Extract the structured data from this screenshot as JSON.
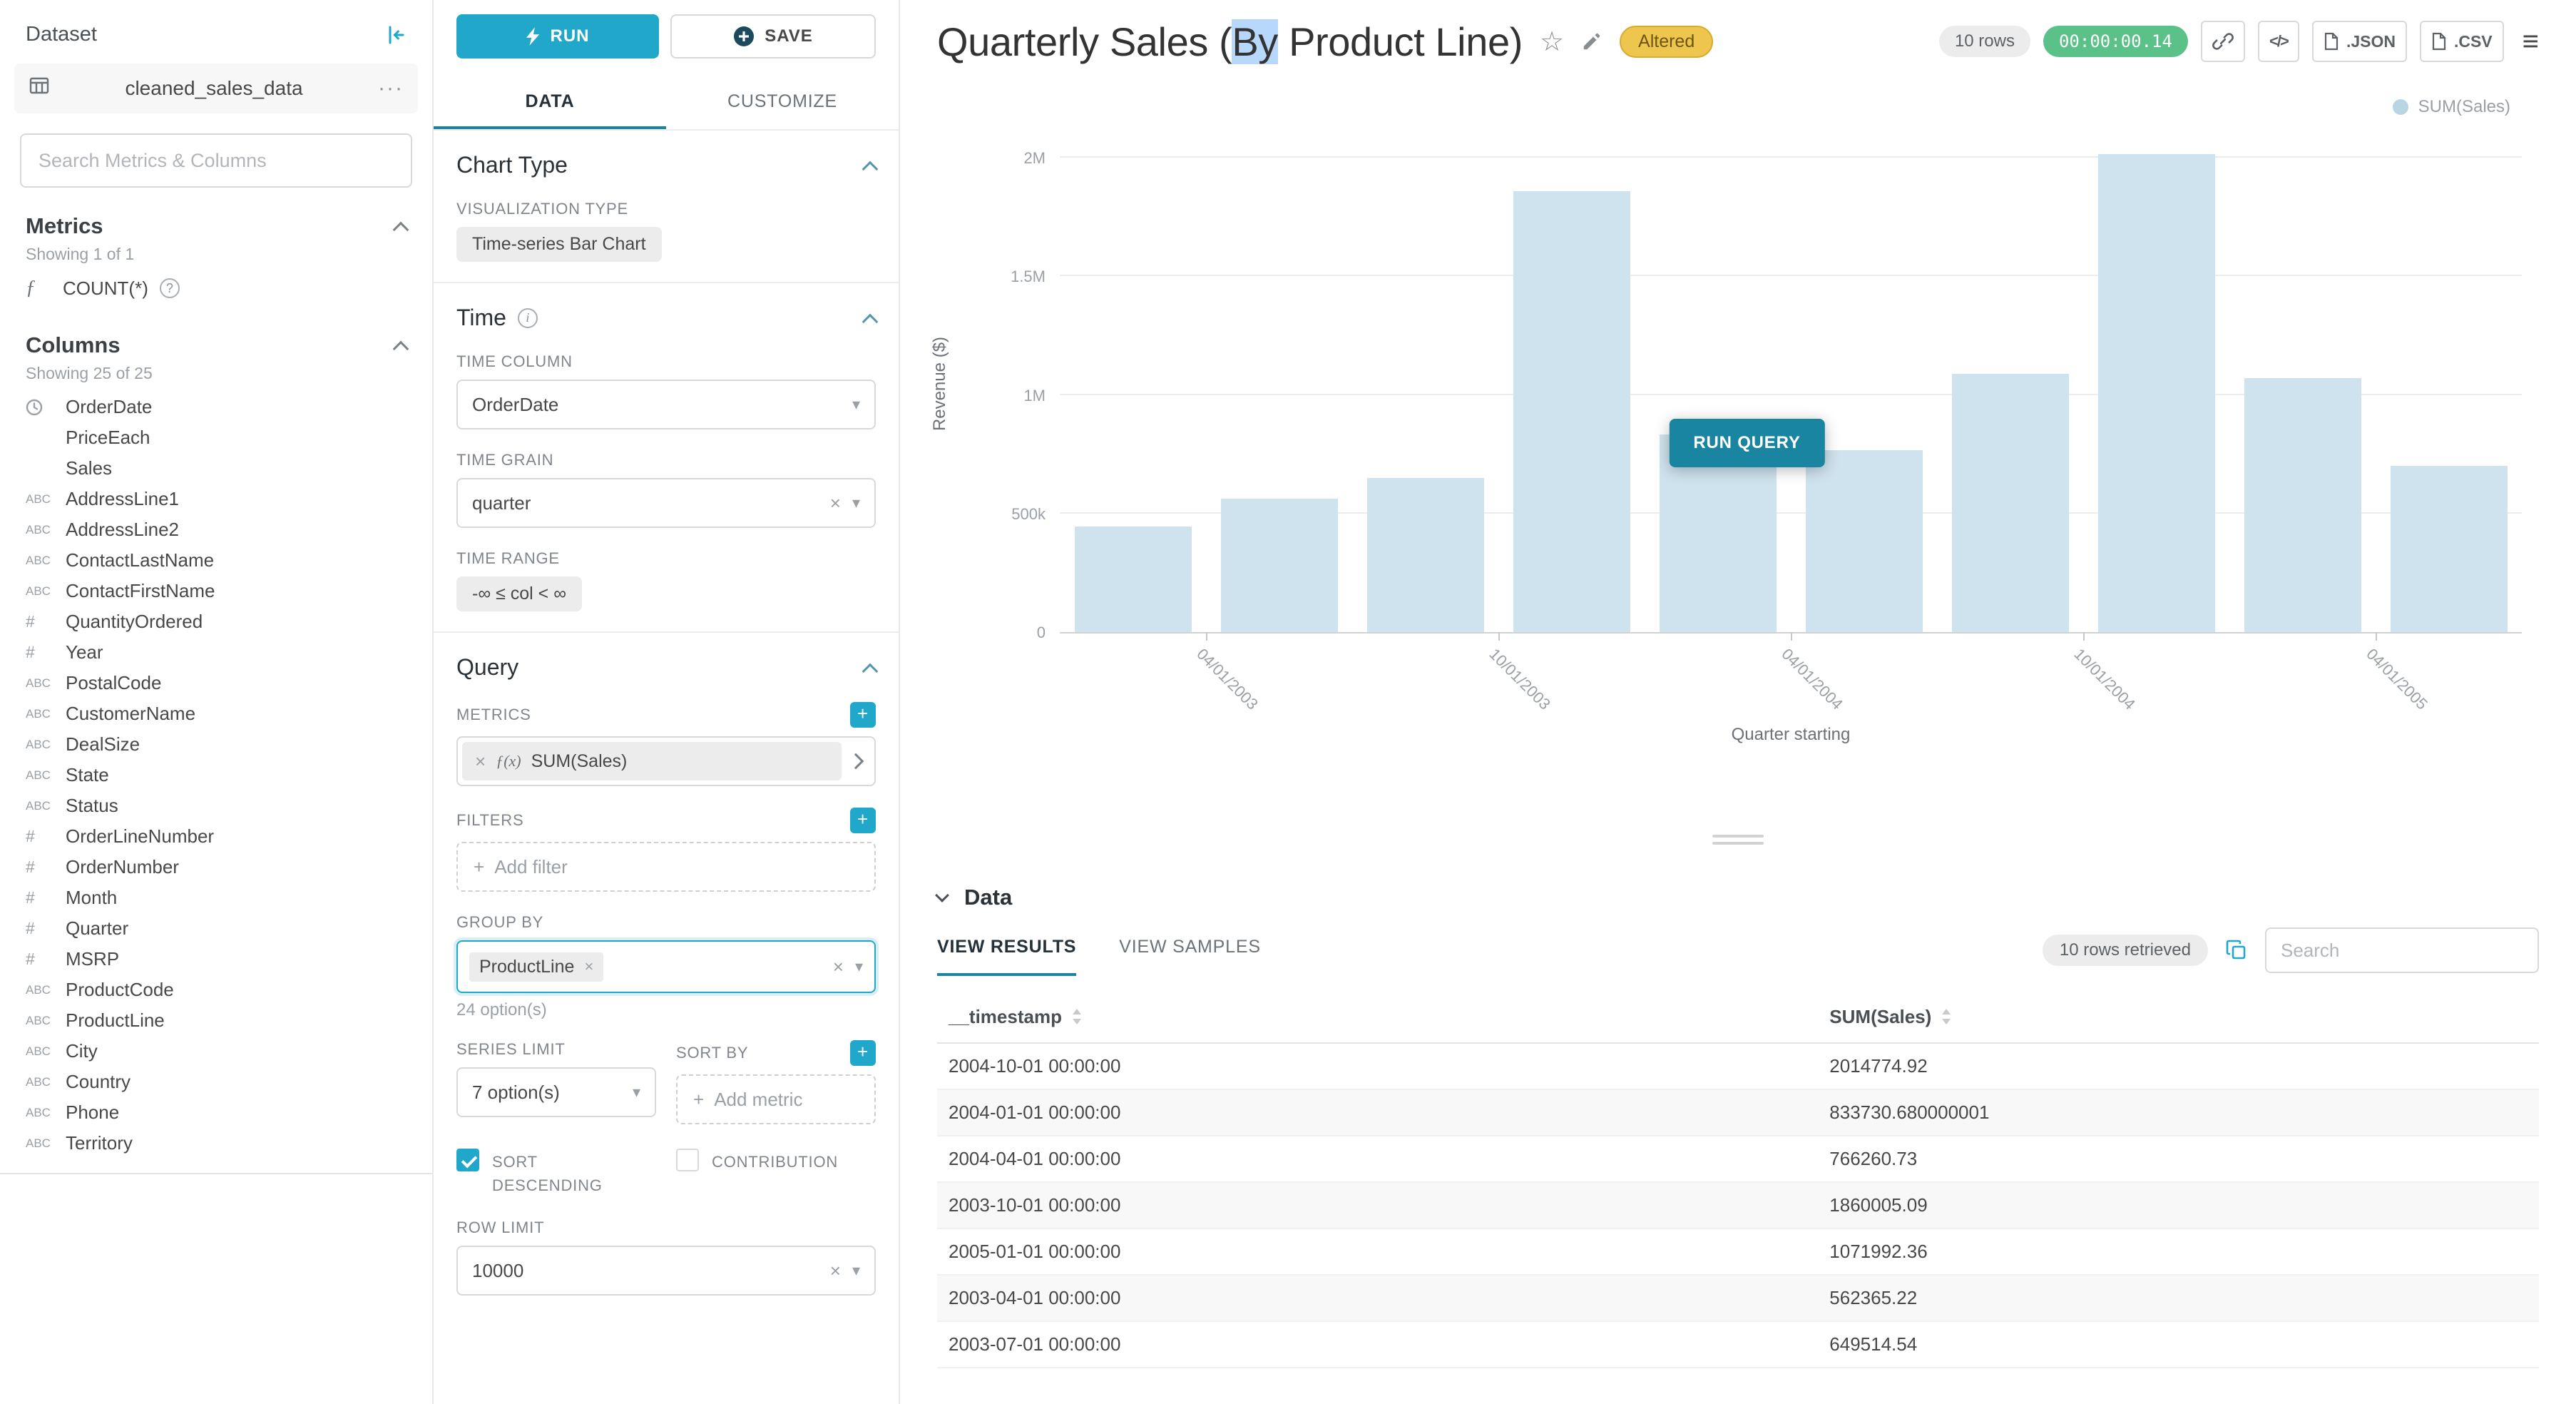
{
  "colors": {
    "accent": "#20a7c9",
    "accent_dark": "#1a85a0",
    "bar": "#cfe3ee",
    "legend_dot": "#b7d5e3",
    "timer_green": "#5ac189",
    "altered_bg": "#eec64e",
    "altered_text": "#6b5617"
  },
  "icons": {
    "abc": "ABC",
    "hash": "#",
    "fx_short": "ƒ",
    "fx": "ƒ(x)",
    "plus": "+",
    "close": "×",
    "caret_down": "▾",
    "code": "</>",
    "menu": "≡",
    "ellipsis": "···",
    "star": "☆",
    "question": "?",
    "info": "i"
  },
  "dataset_panel": {
    "header": "Dataset",
    "dataset_name": "cleaned_sales_data",
    "search_placeholder": "Search Metrics & Columns",
    "metrics_title": "Metrics",
    "metrics_showing": "Showing 1 of 1",
    "metric_items": [
      {
        "icon": "function",
        "name": "COUNT(*)"
      }
    ],
    "columns_title": "Columns",
    "columns_showing": "Showing 25 of 25",
    "column_items": [
      {
        "icon": "clock",
        "name": "OrderDate"
      },
      {
        "icon": "none",
        "name": "PriceEach"
      },
      {
        "icon": "none",
        "name": "Sales"
      },
      {
        "icon": "abc",
        "name": "AddressLine1"
      },
      {
        "icon": "abc",
        "name": "AddressLine2"
      },
      {
        "icon": "abc",
        "name": "ContactLastName"
      },
      {
        "icon": "abc",
        "name": "ContactFirstName"
      },
      {
        "icon": "num",
        "name": "QuantityOrdered"
      },
      {
        "icon": "num",
        "name": "Year"
      },
      {
        "icon": "abc",
        "name": "PostalCode"
      },
      {
        "icon": "abc",
        "name": "CustomerName"
      },
      {
        "icon": "abc",
        "name": "DealSize"
      },
      {
        "icon": "abc",
        "name": "State"
      },
      {
        "icon": "abc",
        "name": "Status"
      },
      {
        "icon": "num",
        "name": "OrderLineNumber"
      },
      {
        "icon": "num",
        "name": "OrderNumber"
      },
      {
        "icon": "num",
        "name": "Month"
      },
      {
        "icon": "num",
        "name": "Quarter"
      },
      {
        "icon": "num",
        "name": "MSRP"
      },
      {
        "icon": "abc",
        "name": "ProductCode"
      },
      {
        "icon": "abc",
        "name": "ProductLine"
      },
      {
        "icon": "abc",
        "name": "City"
      },
      {
        "icon": "abc",
        "name": "Country"
      },
      {
        "icon": "abc",
        "name": "Phone"
      },
      {
        "icon": "abc",
        "name": "Territory"
      }
    ]
  },
  "controls": {
    "run_button": "RUN",
    "save_button": "SAVE",
    "tab_data": "DATA",
    "tab_customize": "CUSTOMIZE",
    "chart_type_section": "Chart Type",
    "viz_type_label": "VISUALIZATION TYPE",
    "viz_type_value": "Time-series Bar Chart",
    "time_section": "Time",
    "time_column_label": "TIME COLUMN",
    "time_column_value": "OrderDate",
    "time_grain_label": "TIME GRAIN",
    "time_grain_value": "quarter",
    "time_range_label": "TIME RANGE",
    "time_range_value": "-∞ ≤ col < ∞",
    "query_section": "Query",
    "metrics_label": "METRICS",
    "metric_chip": "SUM(Sales)",
    "filters_label": "FILTERS",
    "add_filter": "Add filter",
    "group_by_label": "GROUP BY",
    "group_by_chip": "ProductLine",
    "group_by_hint": "24 option(s)",
    "series_limit_label": "SERIES LIMIT",
    "series_limit_value": "7 option(s)",
    "sort_by_label": "SORT BY",
    "add_metric": "Add metric",
    "sort_descending_label": "SORT DESCENDING",
    "contribution_label": "CONTRIBUTION",
    "row_limit_label": "ROW LIMIT",
    "row_limit_value": "10000"
  },
  "header": {
    "title_pre": "Quarterly Sales (",
    "title_highlight": "By",
    "title_post": " Product Line)",
    "altered_badge": "Altered",
    "rows_badge": "10 rows",
    "timer": "00:00:00.14",
    "json_button": ".JSON",
    "csv_button": ".CSV"
  },
  "chart_data": {
    "type": "bar",
    "series_name": "SUM(Sales)",
    "legend": [
      "SUM(Sales)"
    ],
    "x": [
      "2003-01-01",
      "2003-04-01",
      "2003-07-01",
      "2003-10-01",
      "2004-01-01",
      "2004-04-01",
      "2004-07-01",
      "2004-10-01",
      "2005-01-01",
      "2005-04-01"
    ],
    "values": [
      444000,
      562365.22,
      649514.54,
      1860005.09,
      833730.68,
      766260.73,
      1090000,
      2014774.92,
      1071992.36,
      700000
    ],
    "ylabel": "Revenue ($)",
    "xlabel": "Quarter starting",
    "ymax": 2100000,
    "ytick_values": [
      0,
      500000,
      1000000,
      1500000,
      2000000
    ],
    "ytick_labels": [
      "0",
      "500k",
      "1M",
      "1.5M",
      "2M"
    ],
    "xtick_indices": [
      1,
      3,
      5,
      7,
      9
    ],
    "xtick_labels": [
      "04/01/2003",
      "10/01/2003",
      "04/01/2004",
      "10/01/2004",
      "04/01/2005"
    ],
    "run_query_button": "RUN QUERY",
    "grid": true,
    "legend_position": "top-right"
  },
  "data_panel": {
    "title": "Data",
    "tab_results": "VIEW RESULTS",
    "tab_samples": "VIEW SAMPLES",
    "rows_retrieved": "10 rows retrieved",
    "search_placeholder": "Search",
    "columns": [
      "__timestamp",
      "SUM(Sales)"
    ],
    "rows": [
      [
        "2004-10-01 00:00:00",
        "2014774.92"
      ],
      [
        "2004-01-01 00:00:00",
        "833730.680000001"
      ],
      [
        "2004-04-01 00:00:00",
        "766260.73"
      ],
      [
        "2003-10-01 00:00:00",
        "1860005.09"
      ],
      [
        "2005-01-01 00:00:00",
        "1071992.36"
      ],
      [
        "2003-04-01 00:00:00",
        "562365.22"
      ],
      [
        "2003-07-01 00:00:00",
        "649514.54"
      ]
    ]
  }
}
